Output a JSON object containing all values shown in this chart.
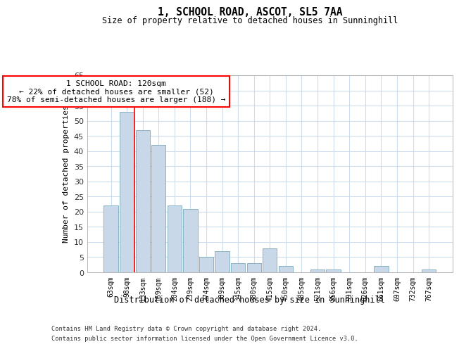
{
  "title": "1, SCHOOL ROAD, ASCOT, SL5 7AA",
  "subtitle": "Size of property relative to detached houses in Sunninghill",
  "xlabel": "Distribution of detached houses by size in Sunninghill",
  "ylabel": "Number of detached properties",
  "bar_color": "#c8d8e8",
  "bar_edge_color": "#7aaabb",
  "background_color": "#ffffff",
  "grid_color": "#ccddee",
  "annotation_text": "1 SCHOOL ROAD: 120sqm\n← 22% of detached houses are smaller (52)\n78% of semi-detached houses are larger (188) →",
  "redline_x": 1.5,
  "categories": [
    "63sqm",
    "98sqm",
    "133sqm",
    "169sqm",
    "204sqm",
    "239sqm",
    "274sqm",
    "309sqm",
    "345sqm",
    "380sqm",
    "415sqm",
    "450sqm",
    "485sqm",
    "521sqm",
    "556sqm",
    "591sqm",
    "626sqm",
    "661sqm",
    "697sqm",
    "732sqm",
    "767sqm"
  ],
  "values": [
    22,
    53,
    47,
    42,
    22,
    21,
    5,
    7,
    3,
    3,
    8,
    2,
    0,
    1,
    1,
    0,
    0,
    2,
    0,
    0,
    1
  ],
  "ylim": [
    0,
    65
  ],
  "yticks": [
    0,
    5,
    10,
    15,
    20,
    25,
    30,
    35,
    40,
    45,
    50,
    55,
    60,
    65
  ],
  "footer_line1": "Contains HM Land Registry data © Crown copyright and database right 2024.",
  "footer_line2": "Contains public sector information licensed under the Open Government Licence v3.0."
}
